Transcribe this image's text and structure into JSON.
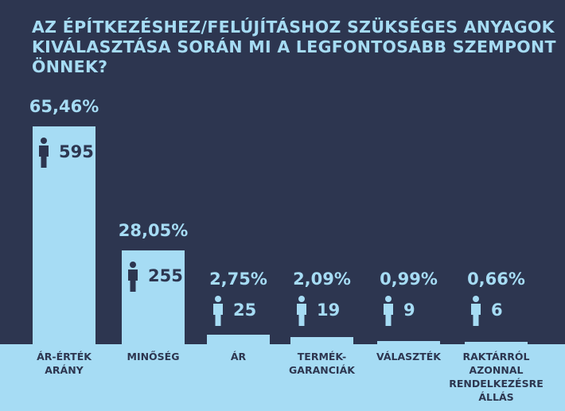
{
  "chart_data": {
    "type": "bar",
    "title": "AZ ÉPÍTKEZÉSHEZ/FELÚJÍTÁSHOZ SZÜKSÉGES ANYAGOK KIVÁLASZTÁSA SORÁN MI A LEGFONTOSABB SZEMPONT ÖNNEK?",
    "categories": [
      [
        "ÁR-ÉRTÉK",
        "ARÁNY"
      ],
      [
        "MINŐSÉG"
      ],
      [
        "ÁR"
      ],
      [
        "TERMÉK-",
        "GARANCIÁK"
      ],
      [
        "VÁLASZTÉK"
      ],
      [
        "RAKTÁRRÓL",
        "AZONNAL",
        "RENDELKEZÉSRE",
        "ÁLLÁS"
      ]
    ],
    "values": [
      65.46,
      28.05,
      2.75,
      2.09,
      0.99,
      0.66
    ],
    "percent_labels": [
      "65,46%",
      "28,05%",
      "2,75%",
      "2,09%",
      "0,99%",
      "0,66%"
    ],
    "counts": [
      "595",
      "255",
      "25",
      "19",
      "9",
      "6"
    ],
    "count_icon": "person-icon",
    "colors": {
      "background": "#2d3650",
      "bar": "#a6dcf4"
    }
  }
}
